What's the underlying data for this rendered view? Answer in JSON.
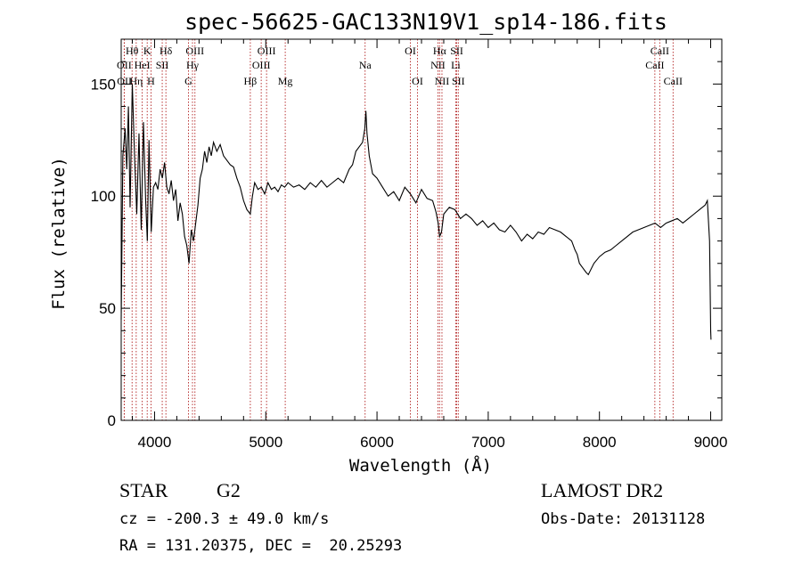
{
  "chart_data": {
    "type": "line",
    "title": "spec-56625-GAC133N19V1_sp14-186.fits",
    "xlabel": "Wavelength (Å)",
    "ylabel": "Flux (relative)",
    "xlim": [
      3700,
      9100
    ],
    "ylim": [
      0,
      170
    ],
    "x_ticks": [
      4000,
      5000,
      6000,
      7000,
      8000,
      9000
    ],
    "y_ticks": [
      0,
      50,
      100,
      150
    ],
    "line_color": "#000000",
    "marker_color": "#b22222",
    "series": [
      {
        "x": [
          3700,
          3715,
          3735,
          3750,
          3765,
          3780,
          3800,
          3820,
          3840,
          3860,
          3880,
          3900,
          3920,
          3935,
          3950,
          3970,
          3990,
          4010,
          4030,
          4050,
          4070,
          4090,
          4110,
          4130,
          4150,
          4170,
          4190,
          4210,
          4230,
          4250,
          4270,
          4290,
          4310,
          4330,
          4350,
          4370,
          4390,
          4410,
          4430,
          4450,
          4470,
          4490,
          4510,
          4530,
          4560,
          4590,
          4620,
          4650,
          4680,
          4710,
          4740,
          4770,
          4800,
          4830,
          4861,
          4880,
          4900,
          4930,
          4960,
          4990,
          5020,
          5050,
          5080,
          5110,
          5140,
          5170,
          5200,
          5250,
          5300,
          5350,
          5400,
          5450,
          5500,
          5550,
          5600,
          5650,
          5700,
          5750,
          5780,
          5810,
          5840,
          5870,
          5890,
          5900,
          5910,
          5930,
          5960,
          6000,
          6050,
          6100,
          6150,
          6200,
          6250,
          6300,
          6350,
          6400,
          6450,
          6500,
          6530,
          6550,
          6563,
          6580,
          6600,
          6650,
          6700,
          6750,
          6800,
          6850,
          6900,
          6950,
          7000,
          7050,
          7100,
          7150,
          7200,
          7250,
          7300,
          7350,
          7400,
          7450,
          7500,
          7550,
          7600,
          7650,
          7700,
          7750,
          7780,
          7800,
          7820,
          7850,
          7880,
          7900,
          7950,
          8000,
          8050,
          8100,
          8150,
          8200,
          8250,
          8300,
          8350,
          8400,
          8450,
          8500,
          8550,
          8600,
          8650,
          8700,
          8750,
          8800,
          8850,
          8900,
          8950,
          8970,
          8990,
          9000,
          9003
        ],
        "y": [
          45,
          118,
          130,
          112,
          140,
          95,
          150,
          118,
          92,
          128,
          85,
          133,
          98,
          80,
          125,
          84,
          104,
          106,
          103,
          112,
          108,
          115,
          104,
          101,
          107,
          98,
          103,
          89,
          97,
          92,
          82,
          78,
          70,
          85,
          80,
          88,
          96,
          108,
          112,
          120,
          115,
          122,
          118,
          124,
          120,
          123,
          118,
          116,
          114,
          113,
          108,
          104,
          98,
          94,
          92,
          100,
          106,
          103,
          104,
          101,
          106,
          103,
          104,
          102,
          105,
          104,
          106,
          104,
          105,
          103,
          106,
          104,
          107,
          104,
          106,
          108,
          106,
          112,
          114,
          120,
          122,
          124,
          130,
          138,
          128,
          118,
          110,
          108,
          104,
          100,
          102,
          98,
          104,
          101,
          97,
          103,
          99,
          98,
          93,
          88,
          82,
          84,
          92,
          95,
          94,
          90,
          92,
          90,
          87,
          89,
          86,
          88,
          85,
          84,
          87,
          84,
          80,
          83,
          81,
          84,
          83,
          86,
          85,
          84,
          82,
          80,
          76,
          74,
          70,
          68,
          66,
          65,
          70,
          73,
          75,
          76,
          78,
          80,
          82,
          84,
          85,
          86,
          87,
          88,
          86,
          88,
          89,
          90,
          88,
          90,
          92,
          94,
          96,
          98,
          80,
          40,
          36
        ]
      }
    ],
    "line_markers": [
      {
        "label": "Hθ",
        "wl": 3798,
        "row": 1
      },
      {
        "label": "OII",
        "wl": 3727,
        "row": 2
      },
      {
        "label": "OII",
        "wl": 3729,
        "row": 3
      },
      {
        "label": "Hη",
        "wl": 3835,
        "row": 3
      },
      {
        "label": "HeI",
        "wl": 3889,
        "row": 2
      },
      {
        "label": "K",
        "wl": 3934,
        "row": 1
      },
      {
        "label": "H",
        "wl": 3968,
        "row": 3
      },
      {
        "label": "SII",
        "wl": 4069,
        "row": 2
      },
      {
        "label": "Hδ",
        "wl": 4102,
        "row": 1
      },
      {
        "label": "G",
        "wl": 4305,
        "row": 3
      },
      {
        "label": "OIII",
        "wl": 4363,
        "row": 1
      },
      {
        "label": "Hγ",
        "wl": 4341,
        "row": 2
      },
      {
        "label": "Hβ",
        "wl": 4861,
        "row": 3
      },
      {
        "label": "OIII",
        "wl": 4959,
        "row": 2
      },
      {
        "label": "OIII",
        "wl": 5007,
        "row": 1
      },
      {
        "label": "Mg",
        "wl": 5175,
        "row": 3
      },
      {
        "label": "Na",
        "wl": 5893,
        "row": 2
      },
      {
        "label": "OI",
        "wl": 6300,
        "row": 1
      },
      {
        "label": "OI",
        "wl": 6364,
        "row": 3
      },
      {
        "label": "NII",
        "wl": 6548,
        "row": 2
      },
      {
        "label": "Hα",
        "wl": 6563,
        "row": 1
      },
      {
        "label": "NII",
        "wl": 6584,
        "row": 3
      },
      {
        "label": "Li",
        "wl": 6708,
        "row": 2
      },
      {
        "label": "SII",
        "wl": 6717,
        "row": 1
      },
      {
        "label": "SII",
        "wl": 6731,
        "row": 3
      },
      {
        "label": "CaII",
        "wl": 8498,
        "row": 2
      },
      {
        "label": "CaII",
        "wl": 8542,
        "row": 1
      },
      {
        "label": "CaII",
        "wl": 8662,
        "row": 3
      }
    ]
  },
  "info": {
    "class_label": "STAR",
    "subclass": "G2",
    "survey": "LAMOST DR2",
    "cz_line": "cz = -200.3 ± 49.0 km/s",
    "obs_date": "Obs-Date: 20131128",
    "radec_line": "RA = 131.20375, DEC =  20.25293"
  }
}
